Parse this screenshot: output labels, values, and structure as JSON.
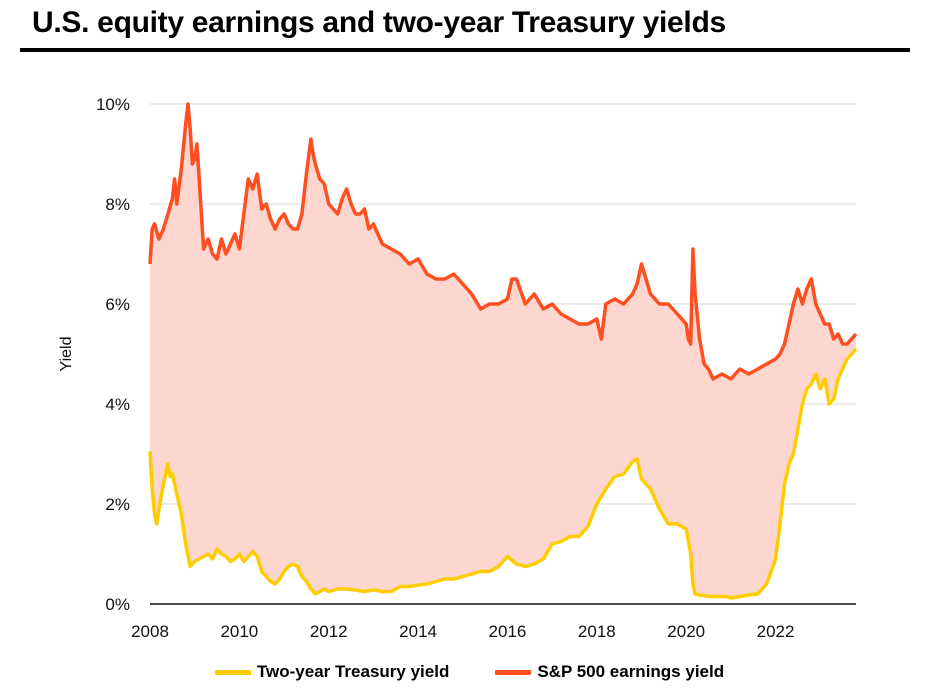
{
  "chart_data": {
    "type": "area",
    "title": "U.S. equity earnings and two-year Treasury yields",
    "ylabel": "Yield",
    "xlabel": "",
    "xlim": [
      2008,
      2023.8
    ],
    "ylim": [
      0,
      10
    ],
    "x_ticks": [
      "2008",
      "2010",
      "2012",
      "2014",
      "2016",
      "2018",
      "2020",
      "2022"
    ],
    "y_ticks": [
      "0%",
      "2%",
      "4%",
      "6%",
      "8%",
      "10%"
    ],
    "grid": "horizontal",
    "legend_position": "bottom",
    "fill_between_series": true,
    "colors": {
      "treasury": "#ffcc00",
      "earnings": "#ff4e1f",
      "fill": "#fdd7cf",
      "grid": "#d9d9d9"
    },
    "series": [
      {
        "name": "Two-year Treasury yield",
        "x": [
          2008.0,
          2008.05,
          2008.1,
          2008.15,
          2008.2,
          2008.3,
          2008.4,
          2008.45,
          2008.5,
          2008.55,
          2008.6,
          2008.7,
          2008.8,
          2008.9,
          2009.0,
          2009.1,
          2009.2,
          2009.3,
          2009.4,
          2009.5,
          2009.6,
          2009.7,
          2009.8,
          2009.9,
          2010.0,
          2010.1,
          2010.2,
          2010.3,
          2010.4,
          2010.5,
          2010.6,
          2010.7,
          2010.8,
          2010.9,
          2011.0,
          2011.1,
          2011.2,
          2011.3,
          2011.4,
          2011.5,
          2011.6,
          2011.7,
          2011.8,
          2011.9,
          2012.0,
          2012.2,
          2012.4,
          2012.6,
          2012.8,
          2013.0,
          2013.2,
          2013.4,
          2013.6,
          2013.8,
          2014.0,
          2014.2,
          2014.4,
          2014.6,
          2014.8,
          2015.0,
          2015.2,
          2015.4,
          2015.6,
          2015.8,
          2016.0,
          2016.2,
          2016.4,
          2016.6,
          2016.8,
          2017.0,
          2017.2,
          2017.4,
          2017.6,
          2017.8,
          2018.0,
          2018.2,
          2018.4,
          2018.6,
          2018.8,
          2018.9,
          2019.0,
          2019.2,
          2019.4,
          2019.6,
          2019.8,
          2020.0,
          2020.1,
          2020.15,
          2020.2,
          2020.3,
          2020.5,
          2020.7,
          2020.9,
          2021.0,
          2021.2,
          2021.4,
          2021.6,
          2021.8,
          2022.0,
          2022.1,
          2022.2,
          2022.3,
          2022.4,
          2022.5,
          2022.6,
          2022.7,
          2022.8,
          2022.9,
          2023.0,
          2023.1,
          2023.2,
          2023.3,
          2023.4,
          2023.5,
          2023.6,
          2023.7,
          2023.8
        ],
        "values": [
          3.05,
          2.3,
          1.8,
          1.6,
          1.9,
          2.4,
          2.8,
          2.55,
          2.6,
          2.4,
          2.2,
          1.8,
          1.2,
          0.75,
          0.85,
          0.9,
          0.95,
          1.0,
          0.9,
          1.1,
          1.0,
          0.95,
          0.85,
          0.9,
          1.0,
          0.85,
          0.95,
          1.05,
          0.95,
          0.65,
          0.55,
          0.45,
          0.4,
          0.5,
          0.65,
          0.75,
          0.8,
          0.75,
          0.55,
          0.45,
          0.3,
          0.2,
          0.25,
          0.3,
          0.25,
          0.3,
          0.3,
          0.28,
          0.25,
          0.28,
          0.25,
          0.25,
          0.35,
          0.35,
          0.38,
          0.4,
          0.45,
          0.5,
          0.5,
          0.55,
          0.6,
          0.65,
          0.65,
          0.75,
          0.95,
          0.8,
          0.75,
          0.8,
          0.9,
          1.2,
          1.25,
          1.35,
          1.35,
          1.55,
          2.0,
          2.3,
          2.55,
          2.6,
          2.85,
          2.9,
          2.5,
          2.3,
          1.9,
          1.6,
          1.6,
          1.5,
          1.0,
          0.4,
          0.2,
          0.18,
          0.15,
          0.15,
          0.15,
          0.12,
          0.15,
          0.18,
          0.2,
          0.4,
          0.9,
          1.6,
          2.4,
          2.8,
          3.0,
          3.5,
          4.0,
          4.3,
          4.4,
          4.6,
          4.3,
          4.5,
          4.0,
          4.1,
          4.5,
          4.7,
          4.9,
          5.0,
          5.1
        ]
      },
      {
        "name": "S&P 500 earnings yield",
        "x": [
          2008.0,
          2008.05,
          2008.1,
          2008.2,
          2008.3,
          2008.4,
          2008.5,
          2008.55,
          2008.6,
          2008.7,
          2008.8,
          2008.85,
          2008.9,
          2008.95,
          2009.0,
          2009.05,
          2009.1,
          2009.15,
          2009.2,
          2009.3,
          2009.4,
          2009.5,
          2009.6,
          2009.7,
          2009.8,
          2009.9,
          2010.0,
          2010.1,
          2010.2,
          2010.3,
          2010.4,
          2010.5,
          2010.6,
          2010.7,
          2010.8,
          2010.9,
          2011.0,
          2011.1,
          2011.2,
          2011.3,
          2011.4,
          2011.5,
          2011.6,
          2011.65,
          2011.7,
          2011.8,
          2011.9,
          2012.0,
          2012.1,
          2012.2,
          2012.3,
          2012.4,
          2012.5,
          2012.6,
          2012.7,
          2012.8,
          2012.9,
          2013.0,
          2013.2,
          2013.4,
          2013.6,
          2013.8,
          2014.0,
          2014.2,
          2014.4,
          2014.6,
          2014.8,
          2015.0,
          2015.2,
          2015.4,
          2015.6,
          2015.8,
          2016.0,
          2016.1,
          2016.2,
          2016.4,
          2016.6,
          2016.8,
          2017.0,
          2017.2,
          2017.4,
          2017.6,
          2017.8,
          2018.0,
          2018.05,
          2018.1,
          2018.2,
          2018.4,
          2018.6,
          2018.8,
          2018.9,
          2019.0,
          2019.1,
          2019.2,
          2019.4,
          2019.6,
          2019.8,
          2020.0,
          2020.05,
          2020.1,
          2020.15,
          2020.2,
          2020.3,
          2020.4,
          2020.5,
          2020.6,
          2020.8,
          2021.0,
          2021.2,
          2021.4,
          2021.6,
          2021.8,
          2022.0,
          2022.1,
          2022.2,
          2022.3,
          2022.4,
          2022.5,
          2022.6,
          2022.7,
          2022.8,
          2022.9,
          2023.0,
          2023.1,
          2023.2,
          2023.3,
          2023.4,
          2023.5,
          2023.6,
          2023.7,
          2023.8
        ],
        "values": [
          6.8,
          7.5,
          7.6,
          7.3,
          7.5,
          7.8,
          8.1,
          8.5,
          8.0,
          8.7,
          9.6,
          10.0,
          9.5,
          8.8,
          8.9,
          9.2,
          8.5,
          7.8,
          7.1,
          7.3,
          7.0,
          6.9,
          7.3,
          7.0,
          7.2,
          7.4,
          7.1,
          7.8,
          8.5,
          8.3,
          8.6,
          7.9,
          8.0,
          7.7,
          7.5,
          7.7,
          7.8,
          7.6,
          7.5,
          7.5,
          7.8,
          8.6,
          9.3,
          9.0,
          8.8,
          8.5,
          8.4,
          8.0,
          7.9,
          7.8,
          8.1,
          8.3,
          8.0,
          7.8,
          7.8,
          7.9,
          7.5,
          7.6,
          7.2,
          7.1,
          7.0,
          6.8,
          6.9,
          6.6,
          6.5,
          6.5,
          6.6,
          6.4,
          6.2,
          5.9,
          6.0,
          6.0,
          6.1,
          6.5,
          6.5,
          6.0,
          6.2,
          5.9,
          6.0,
          5.8,
          5.7,
          5.6,
          5.6,
          5.7,
          5.5,
          5.3,
          6.0,
          6.1,
          6.0,
          6.2,
          6.4,
          6.8,
          6.5,
          6.2,
          6.0,
          6.0,
          5.8,
          5.6,
          5.3,
          5.2,
          7.1,
          6.2,
          5.3,
          4.8,
          4.7,
          4.5,
          4.6,
          4.5,
          4.7,
          4.6,
          4.7,
          4.8,
          4.9,
          5.0,
          5.2,
          5.6,
          6.0,
          6.3,
          6.0,
          6.3,
          6.5,
          6.0,
          5.8,
          5.6,
          5.6,
          5.3,
          5.4,
          5.2,
          5.2,
          5.3,
          5.4
        ]
      }
    ]
  }
}
